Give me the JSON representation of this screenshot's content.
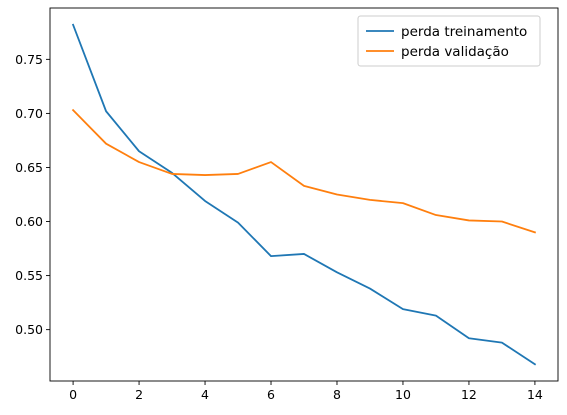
{
  "chart_data": {
    "type": "line",
    "title": "",
    "xlabel": "",
    "ylabel": "",
    "x": [
      0,
      1,
      2,
      3,
      4,
      5,
      6,
      7,
      8,
      9,
      10,
      11,
      12,
      13,
      14
    ],
    "series": [
      {
        "name": "perda treinamento",
        "color": "#1f77b4",
        "values": [
          0.782,
          0.702,
          0.665,
          0.645,
          0.619,
          0.599,
          0.568,
          0.57,
          0.553,
          0.538,
          0.519,
          0.513,
          0.492,
          0.488,
          0.468
        ]
      },
      {
        "name": "perda validação",
        "color": "#ff7f0e",
        "values": [
          0.703,
          0.672,
          0.655,
          0.644,
          0.643,
          0.644,
          0.655,
          0.633,
          0.625,
          0.62,
          0.617,
          0.606,
          0.601,
          0.6,
          0.59
        ]
      }
    ],
    "xlim": [
      -0.7,
      14.7
    ],
    "ylim": [
      0.4525,
      0.7975
    ],
    "xticks": [
      0,
      2,
      4,
      6,
      8,
      10,
      12,
      14
    ],
    "xtick_labels": [
      "0",
      "2",
      "4",
      "6",
      "8",
      "10",
      "12",
      "14"
    ],
    "yticks": [
      0.5,
      0.55,
      0.6,
      0.65,
      0.7,
      0.75
    ],
    "ytick_labels": [
      "0.50",
      "0.55",
      "0.60",
      "0.65",
      "0.70",
      "0.75"
    ],
    "grid": false,
    "legend_position": "top-right"
  }
}
